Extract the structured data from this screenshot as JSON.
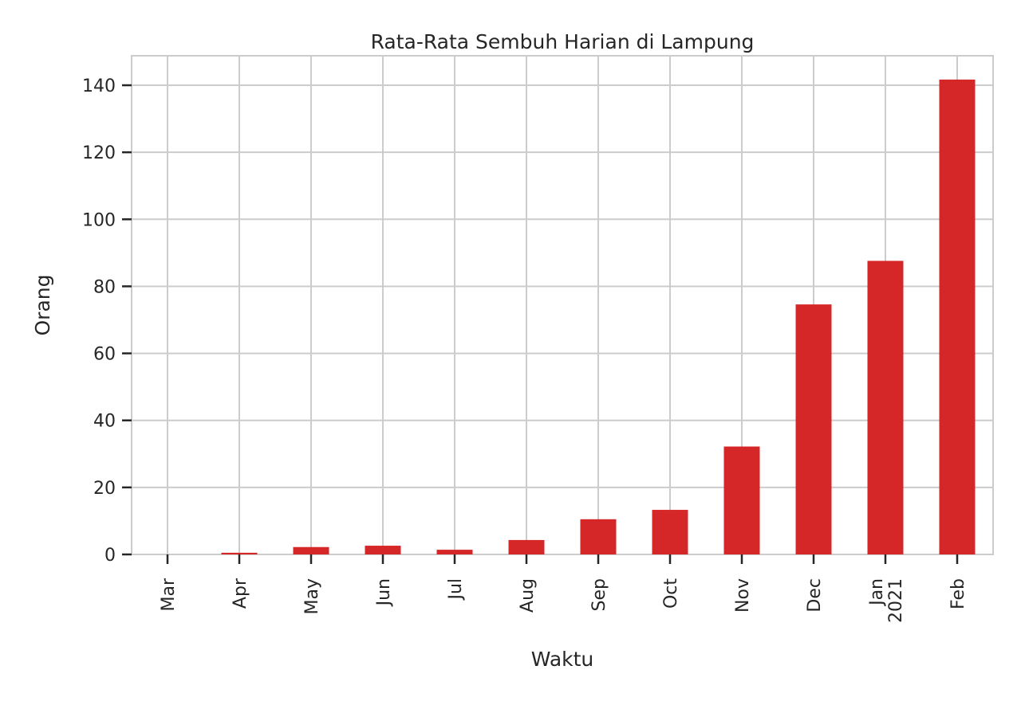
{
  "chart_data": {
    "type": "bar",
    "title": "Rata-Rata Sembuh Harian di Lampung",
    "xlabel": "Waktu",
    "ylabel": "Orang",
    "categories": [
      "Mar",
      "Apr",
      "May",
      "Jun",
      "Jul",
      "Aug",
      "Sep",
      "Oct",
      "Nov",
      "Dec",
      "Jan",
      "Feb"
    ],
    "category_sublabels": [
      "",
      "",
      "",
      "",
      "",
      "",
      "",
      "",
      "",
      "",
      "2021",
      ""
    ],
    "values": [
      0,
      0.5,
      2.2,
      2.6,
      1.4,
      4.3,
      10.5,
      13.3,
      32.2,
      74.6,
      87.6,
      141.7
    ],
    "yticks": [
      0,
      20,
      40,
      60,
      80,
      100,
      120,
      140
    ],
    "ylim": [
      0,
      148.8
    ],
    "grid": true,
    "bar_color": "#d62728",
    "grid_color": "#cccccc"
  }
}
